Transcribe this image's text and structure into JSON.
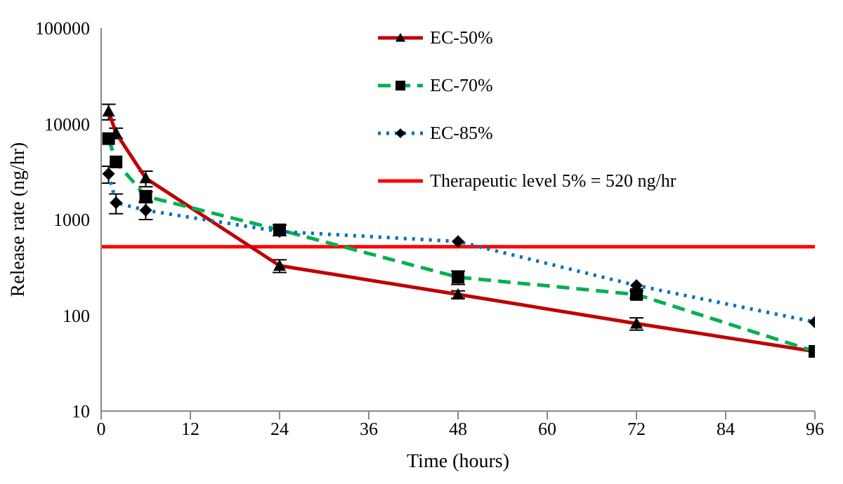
{
  "chart_data": {
    "type": "line",
    "xlabel": "Time (hours)",
    "ylabel": "Release rate (ng/hr)",
    "log": "y",
    "xlim": [
      0,
      96
    ],
    "xticks": [
      0,
      12,
      24,
      36,
      48,
      60,
      72,
      84,
      96
    ],
    "ylim": [
      10,
      100000
    ],
    "yticks": [
      10,
      100,
      1000,
      10000,
      100000
    ],
    "grid": false,
    "legend": "top right",
    "series": [
      {
        "name": "EC-50%",
        "color": "#c00000",
        "marker": "triangle",
        "line_style": "solid",
        "x": [
          1,
          2,
          6,
          24,
          48,
          72,
          96
        ],
        "values": [
          13500,
          8000,
          2700,
          330,
          165,
          82,
          42
        ],
        "errors": [
          2500,
          1000,
          500,
          50,
          15,
          12,
          null
        ]
      },
      {
        "name": "EC-70%",
        "color": "#00b050",
        "marker": "square",
        "line_style": "dashed",
        "x": [
          1,
          2,
          6,
          24,
          48,
          72,
          96
        ],
        "values": [
          7000,
          4000,
          1750,
          780,
          250,
          165,
          42
        ],
        "errors": [
          null,
          null,
          200,
          100,
          40,
          15,
          null
        ]
      },
      {
        "name": "EC-85%",
        "color": "#0070c0",
        "marker": "diamond",
        "line_style": "dotted",
        "x": [
          1,
          2,
          6,
          24,
          48,
          72,
          96
        ],
        "values": [
          3000,
          1500,
          1250,
          750,
          590,
          205,
          85
        ],
        "errors": [
          600,
          350,
          250,
          null,
          null,
          null,
          null
        ]
      }
    ],
    "ref_lines": [
      {
        "axis": "y",
        "value": 520,
        "label": "Therapeutic level 5% = 520 ng/hr",
        "color": "#ff0000"
      }
    ]
  }
}
